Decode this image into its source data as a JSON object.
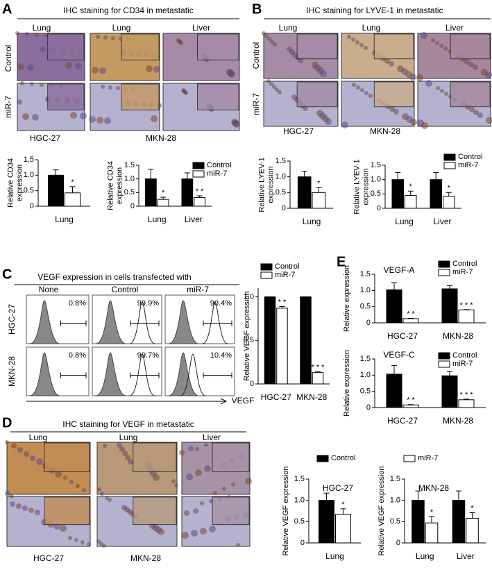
{
  "panels": [
    {
      "letter": "A",
      "title": "IHC staining for CD34 in metastatic",
      "columns": [
        "Lung",
        "Lung",
        "Liver"
      ],
      "rows": [
        "Control",
        "miR-7"
      ],
      "groups": [
        "HGC-27",
        "MKN-28"
      ]
    },
    {
      "letter": "B",
      "title": "IHC staining for LYVE-1 in metastatic",
      "columns": [
        "Lung",
        "Lung",
        "Liver"
      ],
      "rows": [
        "Control",
        "miR-7"
      ],
      "groups": [
        "HGC-27",
        "MKN-28"
      ]
    },
    {
      "letter": "C",
      "title": "VEGF expression in cells transfected with",
      "columns": [
        "None",
        "Control",
        "miR-7"
      ],
      "rows": [
        "HGC-27",
        "MKN-28"
      ],
      "percents": [
        [
          "0.8%",
          "99.9%",
          "90.4%"
        ],
        [
          "0.8%",
          "99.7%",
          "10.4%"
        ]
      ],
      "axis_label": "VEGF"
    },
    {
      "letter": "D",
      "title": "IHC staining for VEGF  in metastatic",
      "columns": [
        "Lung",
        "Lung",
        "Liver"
      ],
      "groups": [
        "HGC-27",
        "MKN-28"
      ]
    },
    {
      "letter": "E"
    }
  ],
  "chart_data": [
    {
      "type": "bar",
      "ylabel": [
        "Relative CD34",
        "expression"
      ],
      "categories": [
        "Lung"
      ],
      "ylim": [
        0,
        1.5
      ],
      "yticks": [
        0,
        0.5,
        {
          "value": 1,
          "label": "1.0"
        },
        1.5
      ],
      "series": [
        {
          "color": "#000000",
          "values": [
            1.0
          ],
          "errors": [
            0.17
          ]
        },
        {
          "color": "#ffffff",
          "values": [
            0.43
          ],
          "errors": [
            0.2
          ],
          "sig": [
            "*"
          ]
        }
      ]
    },
    {
      "type": "bar",
      "ylabel": [
        "Relative CD34",
        "expression"
      ],
      "categories": [
        "Lung",
        "Liver"
      ],
      "ylim": [
        0,
        1.5
      ],
      "yticks": [
        0,
        0.5,
        {
          "value": 1,
          "label": "1.0"
        },
        1.5
      ],
      "legend": true,
      "series": [
        {
          "name": "Control",
          "color": "#000000",
          "values": [
            1.0,
            1.0
          ],
          "errors": [
            0.35,
            0.22
          ]
        },
        {
          "name": "miR-7",
          "color": "#ffffff",
          "values": [
            0.25,
            0.32
          ],
          "errors": [
            0.08,
            0.06
          ],
          "sig": [
            "*",
            "* *"
          ]
        }
      ]
    },
    {
      "type": "bar",
      "ylabel": [
        "Relative LYEV-1",
        "expression"
      ],
      "categories": [
        "Lung"
      ],
      "ylim": [
        0,
        1.5
      ],
      "yticks": [
        0,
        0.5,
        {
          "value": 1,
          "label": "1.0"
        },
        1.5
      ],
      "series": [
        {
          "color": "#000000",
          "values": [
            1.0
          ],
          "errors": [
            0.18
          ]
        },
        {
          "color": "#ffffff",
          "values": [
            0.5
          ],
          "errors": [
            0.15
          ],
          "sig": [
            "*"
          ]
        }
      ]
    },
    {
      "type": "bar",
      "ylabel": [
        "Relative LYEV-1",
        "expression"
      ],
      "categories": [
        "Lung",
        "Liver"
      ],
      "ylim": [
        0,
        1.5
      ],
      "yticks": [
        0,
        0.5,
        {
          "value": 1,
          "label": "1.0"
        },
        1.5
      ],
      "legend": true,
      "series": [
        {
          "name": "Control",
          "color": "#000000",
          "values": [
            1.0,
            1.0
          ],
          "errors": [
            0.25,
            0.25
          ]
        },
        {
          "name": "miR-7",
          "color": "#ffffff",
          "values": [
            0.45,
            0.42
          ],
          "errors": [
            0.15,
            0.13
          ],
          "sig": [
            "*",
            "*"
          ]
        }
      ]
    },
    {
      "type": "bar",
      "ylabel": [
        "Relative VEGF expression"
      ],
      "categories": [
        "HGC-27",
        "MKN-28"
      ],
      "ylim": [
        0,
        1.1
      ],
      "yticks": [
        0,
        0.5,
        {
          "value": 1,
          "label": "1.0"
        }
      ],
      "legend": true,
      "series": [
        {
          "name": "Control",
          "color": "#000000",
          "values": [
            1.0,
            1.0
          ],
          "errors": [
            0,
            0
          ]
        },
        {
          "name": "miR-7",
          "color": "#ffffff",
          "values": [
            0.87,
            0.13
          ],
          "errors": [
            0.02,
            0.01
          ],
          "sig": [
            "* *",
            "* * *"
          ]
        }
      ]
    },
    {
      "type": "bar",
      "title": "VEGF-A",
      "ylabel": [
        "Relative expression"
      ],
      "categories": [
        "HGC-27",
        "MKN-28"
      ],
      "ylim": [
        0,
        1.5
      ],
      "yticks": [
        0,
        0.5,
        {
          "value": 1,
          "label": "1.0"
        },
        1.5
      ],
      "legend": true,
      "series": [
        {
          "name": "Control",
          "color": "#000000",
          "values": [
            1.02,
            1.05
          ],
          "errors": [
            0.22,
            0.1
          ]
        },
        {
          "name": "miR-7",
          "color": "#ffffff",
          "values": [
            0.13,
            0.4
          ],
          "errors": [
            0.01,
            0.01
          ],
          "sig": [
            "* *",
            "* * *"
          ]
        }
      ]
    },
    {
      "type": "bar",
      "title": "VEGF-C",
      "ylabel": [
        "Relative expression"
      ],
      "categories": [
        "HGC-27",
        "MKN-28"
      ],
      "ylim": [
        0,
        1.5
      ],
      "yticks": [
        0,
        0.5,
        {
          "value": 1,
          "label": "1.0"
        },
        1.5
      ],
      "legend": true,
      "series": [
        {
          "name": "Control",
          "color": "#000000",
          "values": [
            1.03,
            0.98
          ],
          "errors": [
            0.27,
            0.13
          ]
        },
        {
          "name": "miR-7",
          "color": "#ffffff",
          "values": [
            0.08,
            0.24
          ],
          "errors": [
            0.01,
            0.02
          ],
          "sig": [
            "* *",
            "* * *"
          ]
        }
      ]
    },
    {
      "type": "bar",
      "title": "HGC-27",
      "ylabel": [
        "Relative VEGF expression"
      ],
      "categories": [
        "Lung"
      ],
      "ylim": [
        0,
        1.5
      ],
      "yticks": [
        0,
        0.5,
        {
          "value": 1,
          "label": "1.0"
        },
        1.5
      ],
      "legend": true,
      "series": [
        {
          "name": "Control",
          "color": "#000000",
          "values": [
            1.0
          ],
          "errors": [
            0.17
          ]
        },
        {
          "name": "miR-7",
          "color": "#ffffff",
          "values": [
            0.67
          ],
          "errors": [
            0.13
          ],
          "sig": [
            "*"
          ]
        }
      ]
    },
    {
      "type": "bar",
      "title": "MKN-28",
      "ylabel": [
        "Relative VEGF expression"
      ],
      "categories": [
        "Lung",
        "Liver"
      ],
      "ylim": [
        0,
        1.5
      ],
      "yticks": [
        0,
        0.5,
        {
          "value": 1,
          "label": "1.0"
        },
        1.5
      ],
      "series": [
        {
          "color": "#000000",
          "values": [
            1.0,
            1.0
          ],
          "errors": [
            0.22,
            0.22
          ]
        },
        {
          "color": "#ffffff",
          "values": [
            0.47,
            0.58
          ],
          "errors": [
            0.15,
            0.13
          ],
          "sig": [
            "*",
            "*"
          ]
        }
      ]
    }
  ]
}
